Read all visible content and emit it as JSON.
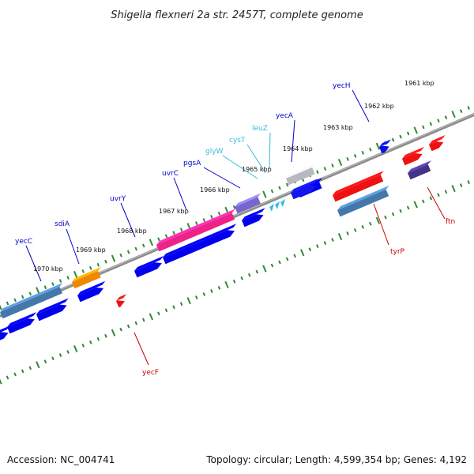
{
  "title": "Shigella flexneri 2a str. 2457T, complete genome",
  "accession": "Accession: NC_004741",
  "summary": "Topology: circular; Length: 4,599,354 bp; Genes: 4,192",
  "colors": {
    "backbone": "#8c8c8c",
    "ticks": "#2e8b2e",
    "cds_forward_label": "#0000cc",
    "cds_reverse_label": "#cc0000",
    "rna_label": "#33bbdd"
  },
  "ticks": [
    {
      "label": "1961 kbp"
    },
    {
      "label": "1962 kbp"
    },
    {
      "label": "1963 kbp"
    },
    {
      "label": "1964 kbp"
    },
    {
      "label": "1965 kbp"
    },
    {
      "label": "1966 kbp"
    },
    {
      "label": "1967 kbp"
    },
    {
      "label": "1968 kbp"
    },
    {
      "label": "1969 kbp"
    },
    {
      "label": "1970 kbp"
    }
  ],
  "gene_labels": [
    {
      "name": "yecH",
      "strand": "forward"
    },
    {
      "name": "yecA",
      "strand": "forward"
    },
    {
      "name": "leuZ",
      "strand": "rna"
    },
    {
      "name": "cysT",
      "strand": "rna"
    },
    {
      "name": "glyW",
      "strand": "rna"
    },
    {
      "name": "pgsA",
      "strand": "forward"
    },
    {
      "name": "uvrC",
      "strand": "forward"
    },
    {
      "name": "uvrY",
      "strand": "forward"
    },
    {
      "name": "sdiA",
      "strand": "forward"
    },
    {
      "name": "yecC",
      "strand": "forward"
    },
    {
      "name": "ftn",
      "strand": "reverse"
    },
    {
      "name": "tyrP",
      "strand": "reverse"
    },
    {
      "name": "yecF",
      "strand": "reverse"
    }
  ]
}
